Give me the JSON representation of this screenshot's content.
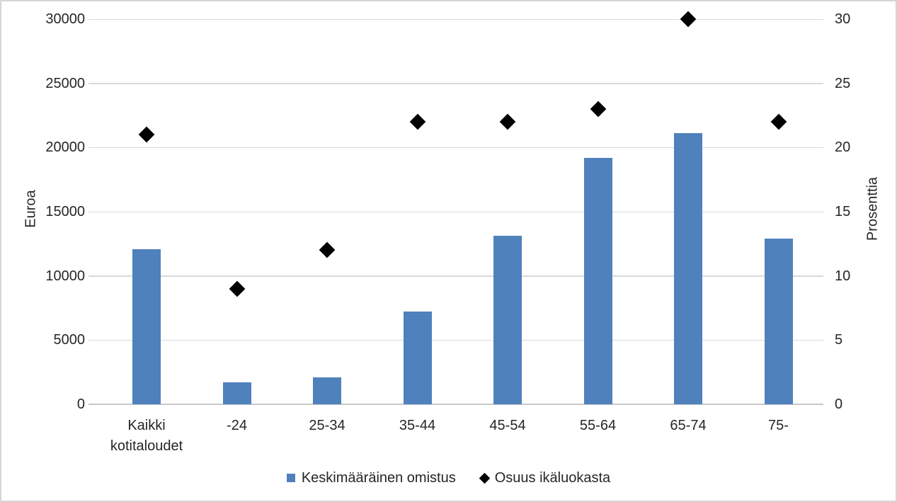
{
  "figure": {
    "background": "#FFFFFF",
    "border_color": "#D5D5D5",
    "text_color": "#262626"
  },
  "chart_data": {
    "type": "combo bar + scatter (dual axis)",
    "title": "",
    "categories": [
      "Kaikki kotitaloudet",
      "-24",
      "25-34",
      "35-44",
      "45-54",
      "55-64",
      "65-74",
      "75-"
    ],
    "series": [
      {
        "name": "Keskimääräinen omistus",
        "type": "bar",
        "axis": "left",
        "marker": "square",
        "color": "#4F81BD",
        "values": [
          12100,
          1700,
          2100,
          7200,
          13100,
          19200,
          21100,
          12900
        ]
      },
      {
        "name": "Osuus ikäluokasta",
        "type": "scatter",
        "axis": "right",
        "marker": "diamond",
        "color": "#000000",
        "values": [
          21,
          9,
          12,
          22,
          22,
          23,
          30,
          22
        ]
      }
    ],
    "left_axis": {
      "title": "Euroa",
      "min": 0,
      "max": 30000,
      "step": 5000,
      "ticks": [
        "0",
        "5000",
        "10000",
        "15000",
        "20000",
        "25000",
        "30000"
      ]
    },
    "right_axis": {
      "title": "Prosenttia",
      "min": 0,
      "max": 30,
      "step": 5,
      "ticks": [
        "0",
        "5",
        "10",
        "15",
        "20",
        "25",
        "30"
      ]
    },
    "grid": "horizontal",
    "gridline_color": "#D9D9D9",
    "axis_line_color": "#C8C8C8",
    "legend_position": "bottom"
  }
}
